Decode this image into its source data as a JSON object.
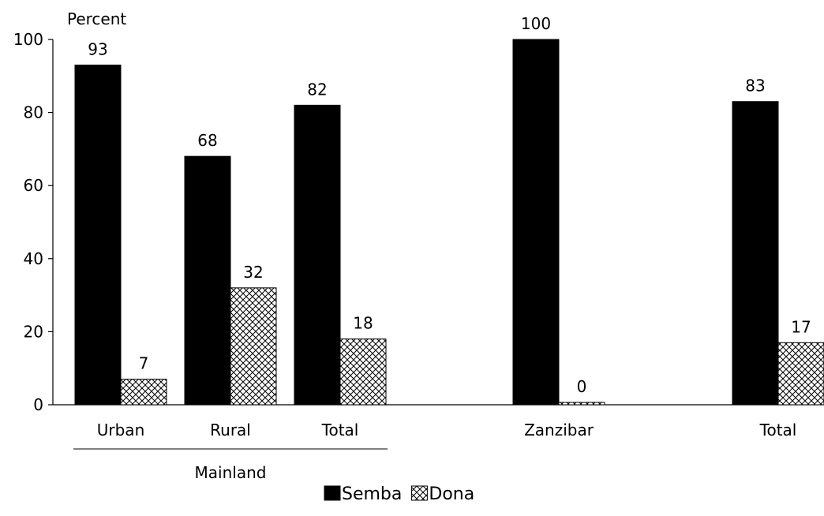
{
  "chart_data": {
    "type": "bar",
    "ylabel": "Percent",
    "ylim": [
      0,
      100
    ],
    "yticks": [
      0,
      20,
      40,
      60,
      80,
      100
    ],
    "categories": [
      "Urban",
      "Rural",
      "Total",
      "Zanzibar",
      "Total"
    ],
    "group_labels": [
      {
        "label": "Mainland",
        "categories": [
          "Urban",
          "Rural",
          "Total"
        ]
      }
    ],
    "series": [
      {
        "name": "Semba",
        "values": [
          93,
          68,
          82,
          100,
          83
        ],
        "color": "#000000",
        "pattern": "solid"
      },
      {
        "name": "Dona",
        "values": [
          7,
          32,
          18,
          0,
          17
        ],
        "color": "#ffffff",
        "pattern": "crosshatch"
      }
    ],
    "data_labels": true,
    "grid": false,
    "legend_position": "bottom-center"
  }
}
